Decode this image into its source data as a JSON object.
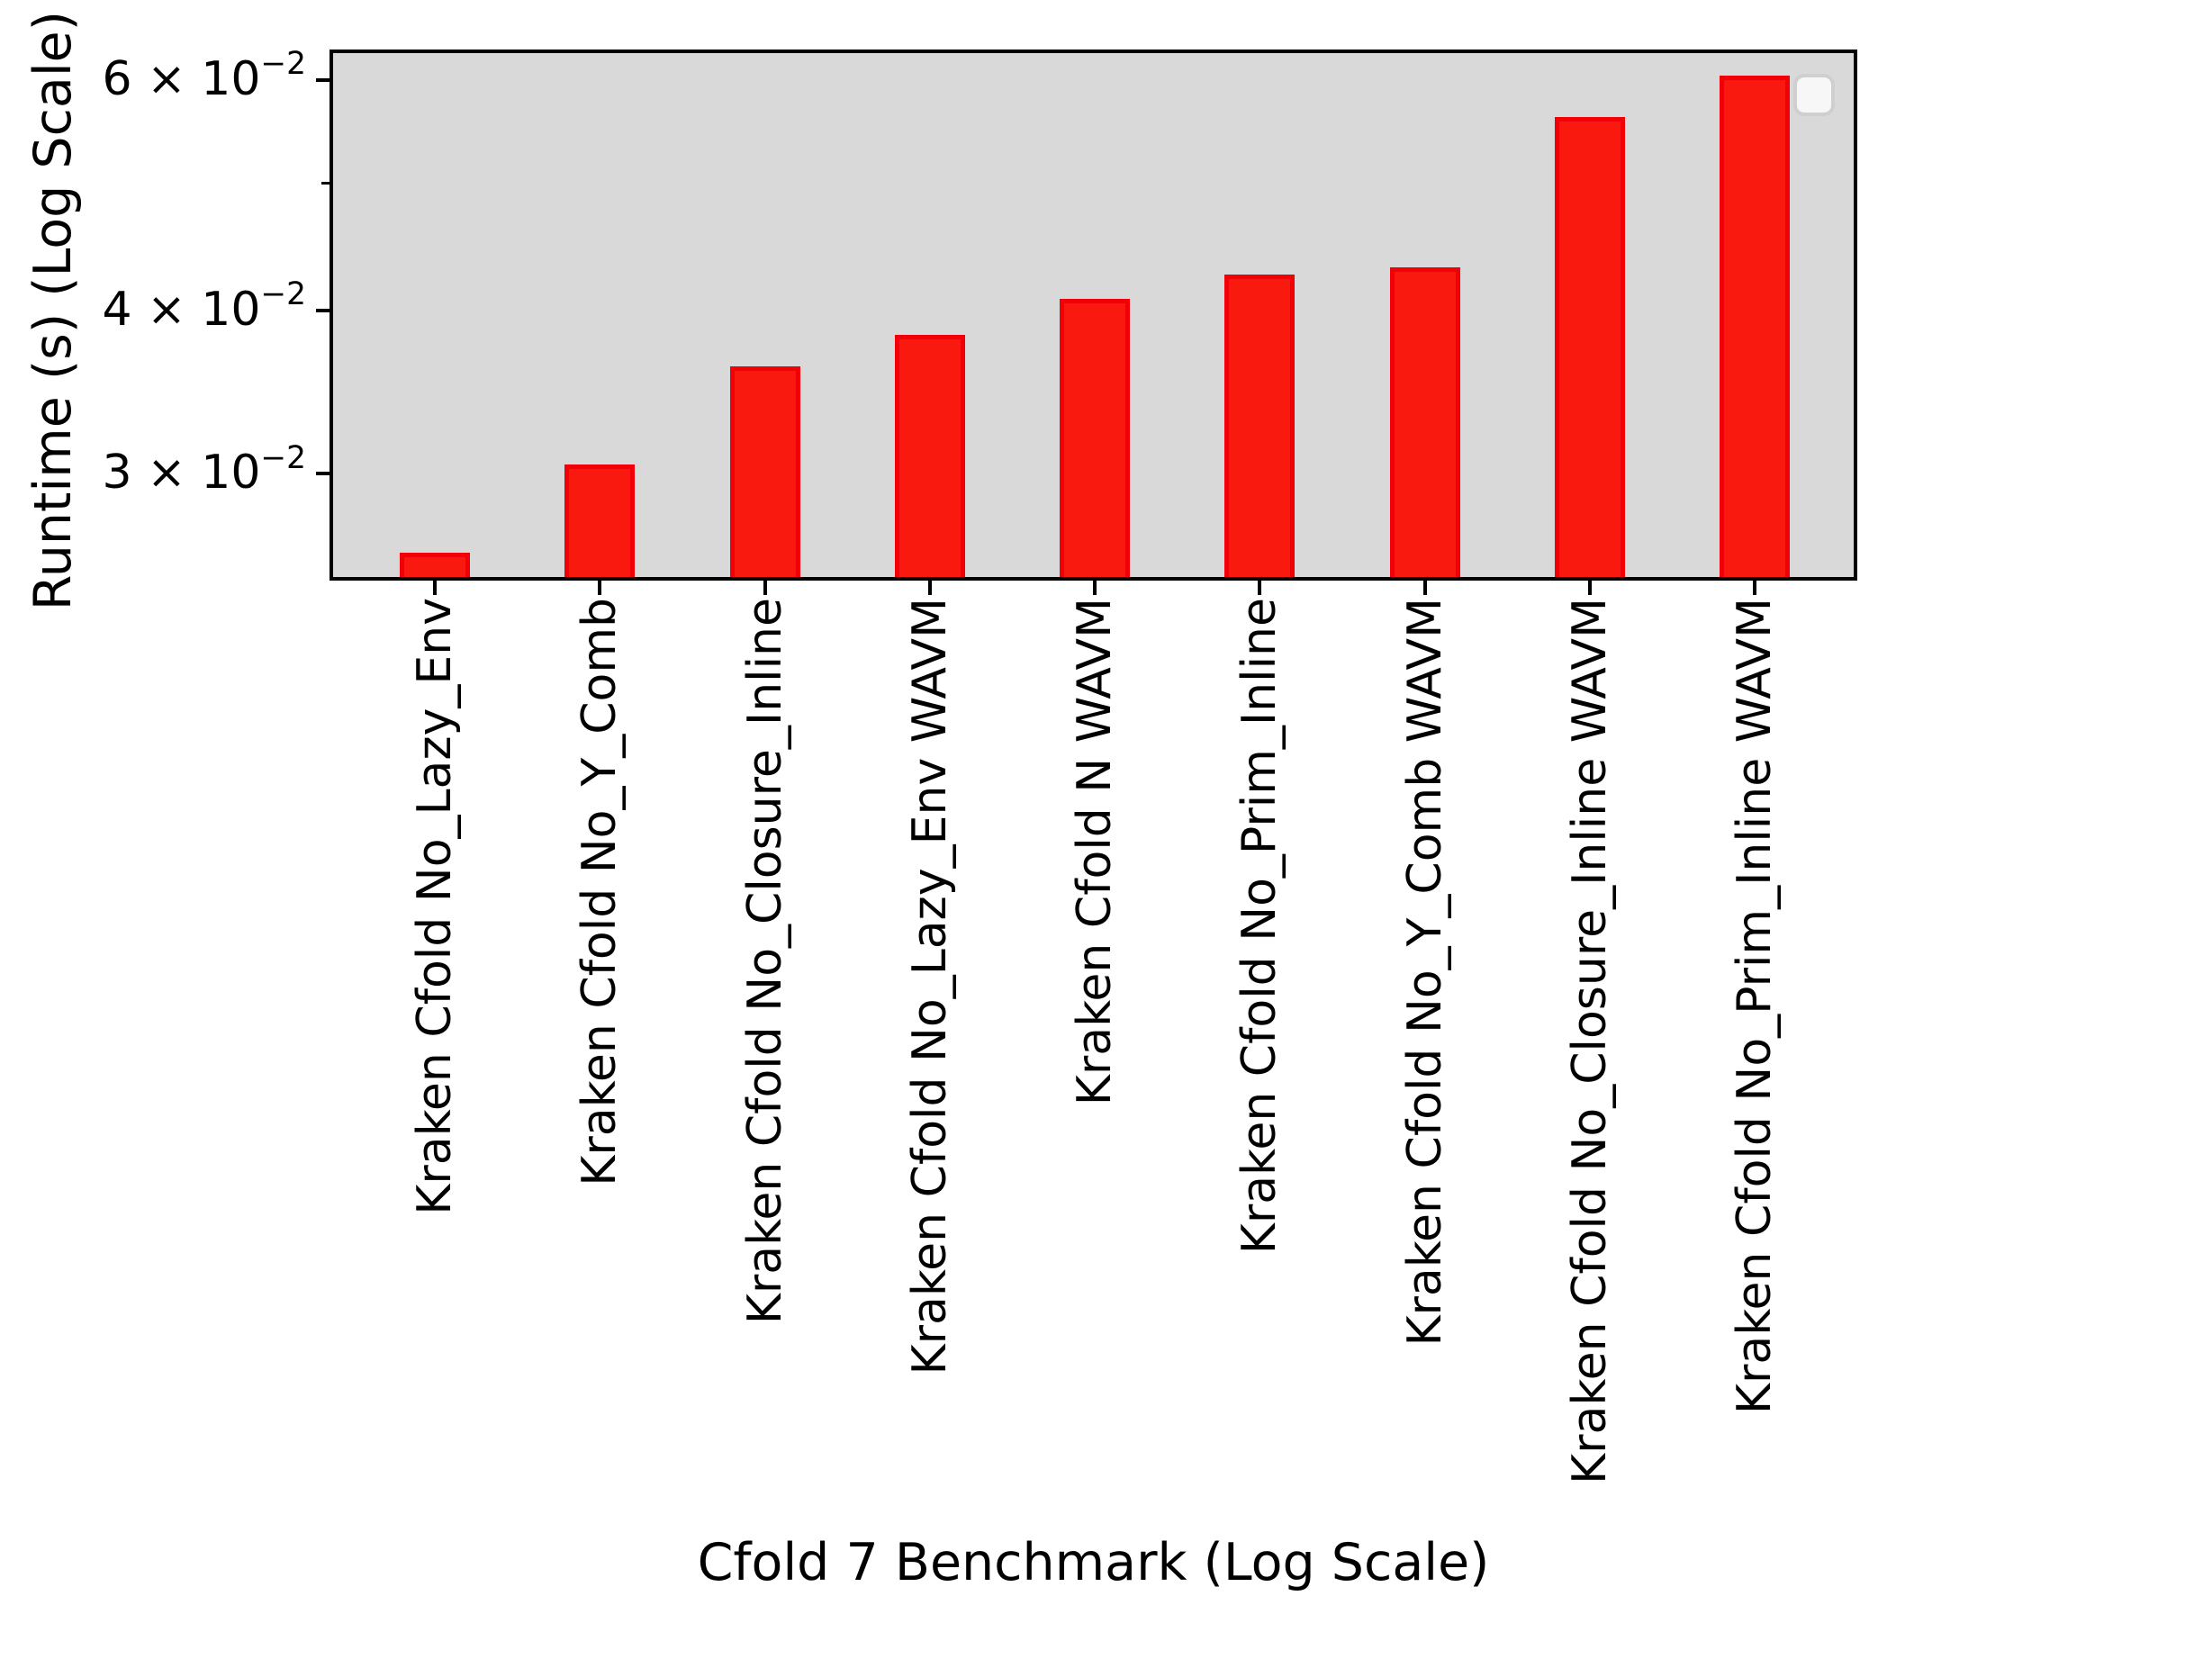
{
  "chart_data": {
    "type": "bar",
    "title": "",
    "xlabel": "Cfold 7 Benchmark (Log Scale)",
    "ylabel": "Runtime (s) (Log Scale)",
    "yscale": "log",
    "ylim": [
      0.025,
      0.0629
    ],
    "grid": false,
    "legend": {
      "visible": true,
      "entries": []
    },
    "categories": [
      "Kraken Cfold No_Lazy_Env",
      "Kraken Cfold No_Y_Comb",
      "Kraken Cfold No_Closure_Inline",
      "Kraken Cfold No_Lazy_Env WAVM",
      "Kraken Cfold N WAVM",
      "Kraken Cfold No_Prim_Inline",
      "Kraken Cfold No_Y_Comb WAVM",
      "Kraken Cfold No_Closure_Inline WAVM",
      "Kraken Cfold No_Prim_Inline WAVM"
    ],
    "values": [
      0.0261,
      0.0305,
      0.0362,
      0.0383,
      0.0408,
      0.0426,
      0.0431,
      0.0562,
      0.0605
    ],
    "y_ticks_major": [
      {
        "value": 0.03,
        "label_base": "3 × 10",
        "label_exp": "−2"
      },
      {
        "value": 0.04,
        "label_base": "4 × 10",
        "label_exp": "−2"
      },
      {
        "value": 0.06,
        "label_base": "6 × 10",
        "label_exp": "−2"
      }
    ],
    "y_ticks_minor": [
      0.05
    ],
    "colors": {
      "bar_fill": "#f9190f",
      "bar_edge": "#ef0107",
      "plot_background": "#d9d9d9",
      "axis": "#000000",
      "legend_background": "#f7f7f7",
      "legend_border": "#cfcfcf",
      "figure_background": "#ffffff"
    }
  }
}
